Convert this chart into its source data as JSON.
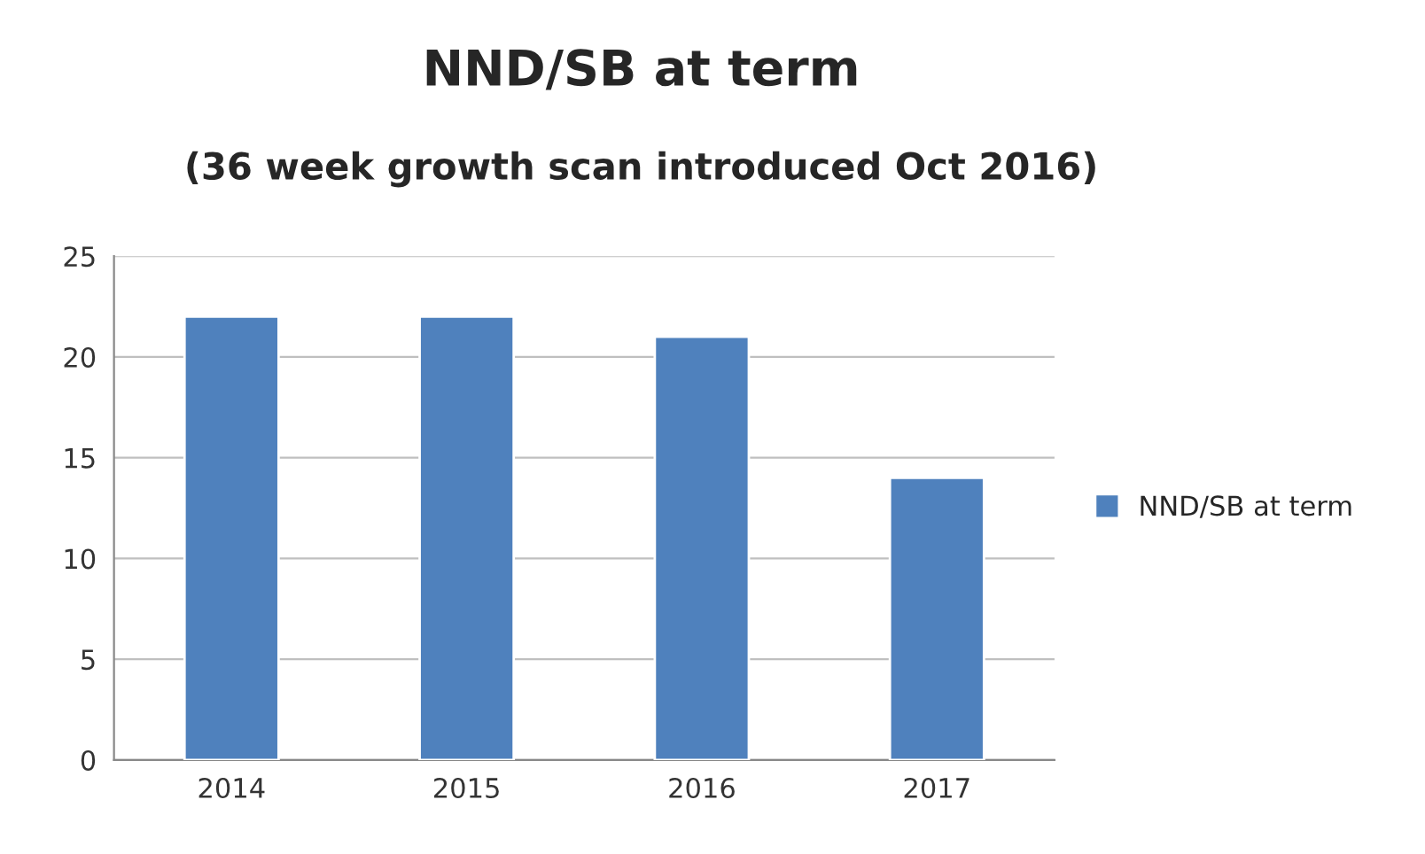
{
  "chart_data": {
    "type": "bar",
    "title": "NND/SB at term",
    "subtitle": "(36 week growth scan introduced Oct 2016)",
    "categories": [
      "2014",
      "2015",
      "2016",
      "2017"
    ],
    "series": [
      {
        "name": "NND/SB at term",
        "color": "#4f81bd",
        "values": [
          22,
          22,
          21,
          14
        ]
      }
    ],
    "ylim": [
      0,
      25
    ],
    "yticks": [
      0,
      5,
      10,
      15,
      20,
      25
    ],
    "grid": "y",
    "legend": "right"
  }
}
